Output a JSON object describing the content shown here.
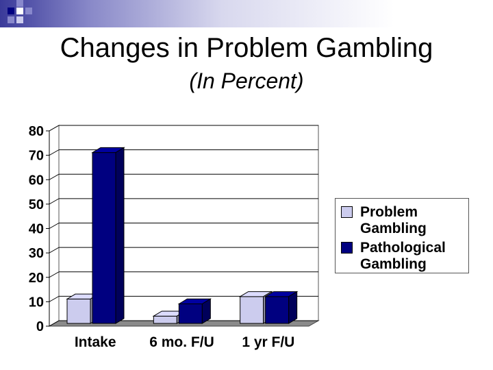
{
  "slide": {
    "title": "Changes in Problem Gambling",
    "subtitle": "(In Percent)"
  },
  "chart_data": {
    "type": "bar",
    "title": "",
    "xlabel": "",
    "ylabel": "",
    "categories": [
      "Intake",
      "6 mo. F/U",
      "1 yr F/U"
    ],
    "series": [
      {
        "name": "Problem Gambling",
        "values": [
          10,
          3,
          11
        ],
        "color": "#ccccee"
      },
      {
        "name": "Pathological Gambling",
        "values": [
          70,
          8,
          11
        ],
        "color": "#000080"
      }
    ],
    "ylim": [
      0,
      80
    ],
    "yticks": [
      0,
      10,
      20,
      30,
      40,
      50,
      60,
      70,
      80
    ],
    "grid": true,
    "legend": "right",
    "style": "3d"
  }
}
